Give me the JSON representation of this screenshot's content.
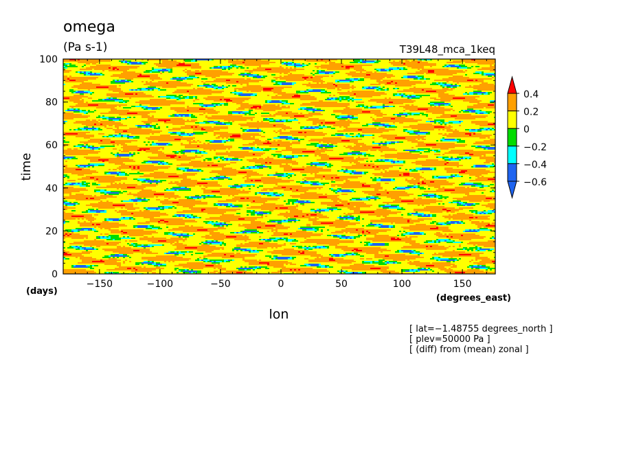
{
  "chart_data": {
    "type": "heatmap",
    "title": "omega",
    "units": "(Pa s-1)",
    "run_label": "T39L48_mca_1keq",
    "xlabel": "lon",
    "x_units": "(degrees_east)",
    "ylabel": "time",
    "y_units": "(days)",
    "xlim": [
      -180,
      177.1875
    ],
    "ylim": [
      0,
      100
    ],
    "x_ticks": [
      -150,
      -100,
      -50,
      0,
      50,
      100,
      150
    ],
    "x_tick_labels": [
      "−150",
      "−100",
      "−50",
      "0",
      "50",
      "100",
      "150"
    ],
    "y_ticks": [
      0,
      20,
      40,
      60,
      80,
      100
    ],
    "y_tick_labels": [
      "0",
      "20",
      "40",
      "60",
      "80",
      "100"
    ],
    "grid": false,
    "colorbar": {
      "levels": [
        -0.6,
        -0.4,
        -0.2,
        0,
        0.2,
        0.4
      ],
      "labels": [
        "−0.6",
        "−0.4",
        "−0.2",
        "0",
        "0.2",
        "0.4"
      ],
      "colors": [
        "#1e64f0",
        "#00ffff",
        "#00dc00",
        "#ffff00",
        "#ffa000",
        "#ff0000"
      ],
      "extend": "both"
    },
    "annotations": [
      "[ lat=−1.48755 degrees_north ]",
      "[ plev=50000 Pa ]",
      "[ (diff) from (mean) zonal ]"
    ]
  }
}
